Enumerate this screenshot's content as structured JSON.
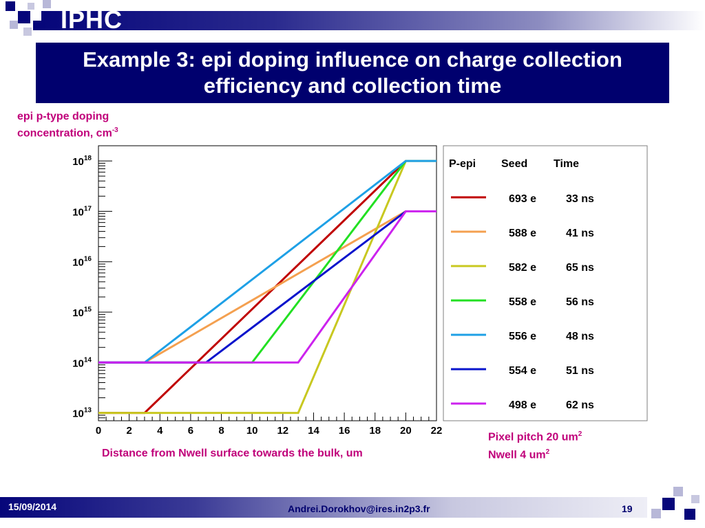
{
  "header": {
    "logo": "IPHC",
    "title": "Example 3: epi doping influence on charge collection efficiency and collection time"
  },
  "annotations": {
    "ylabel_line1": "epi p-type doping",
    "ylabel_line2": "concentration, cm",
    "ylabel_exp": "-3",
    "xlabel": "Distance from Nwell surface towards the bulk, um",
    "pixel_pitch": "Pixel pitch 20 um",
    "pixel_pitch_exp": "2",
    "nwell": "Nwell 4 um",
    "nwell_exp": "2"
  },
  "footer": {
    "date": "15/09/2014",
    "email": "Andrei.Dorokhov@ires.in2p3.fr",
    "page": "19"
  },
  "chart_data": {
    "type": "line",
    "y_scale": "log",
    "xlim": [
      0,
      22
    ],
    "ylim": [
      7000000000000.0,
      2e+18
    ],
    "x_ticks": [
      0,
      2,
      4,
      6,
      8,
      10,
      12,
      14,
      16,
      18,
      20,
      22
    ],
    "y_ticks": [
      {
        "value": 10000000000000.0,
        "base": "10",
        "exp": "13"
      },
      {
        "value": 100000000000000.0,
        "base": "10",
        "exp": "14"
      },
      {
        "value": 1000000000000000.0,
        "base": "10",
        "exp": "15"
      },
      {
        "value": 1e+16,
        "base": "10",
        "exp": "16"
      },
      {
        "value": 1e+17,
        "base": "10",
        "exp": "17"
      },
      {
        "value": 1e+18,
        "base": "10",
        "exp": "18"
      }
    ],
    "legend": {
      "placement": "right",
      "headers": [
        "P-epi",
        "Seed",
        "Time"
      ]
    },
    "series": [
      {
        "seed": "693 e",
        "time": "33 ns",
        "color": "#c00000",
        "points": [
          [
            0,
            10000000000000.0
          ],
          [
            3,
            10000000000000.0
          ],
          [
            20,
            1e+18
          ]
        ]
      },
      {
        "seed": "588 e",
        "time": "41 ns",
        "color": "#f4a050",
        "points": [
          [
            0,
            100000000000000.0
          ],
          [
            3,
            100000000000000.0
          ],
          [
            20,
            1e+17
          ]
        ]
      },
      {
        "seed": "582 e",
        "time": "65 ns",
        "color": "#c8c820",
        "points": [
          [
            0,
            10000000000000.0
          ],
          [
            13,
            10000000000000.0
          ],
          [
            20,
            1e+18
          ],
          [
            22,
            1e+18
          ]
        ]
      },
      {
        "seed": "558 e",
        "time": "56 ns",
        "color": "#22e022",
        "points": [
          [
            0,
            100000000000000.0
          ],
          [
            10,
            100000000000000.0
          ],
          [
            20,
            1e+18
          ]
        ]
      },
      {
        "seed": "556 e",
        "time": "48 ns",
        "color": "#1ea0e6",
        "points": [
          [
            0,
            100000000000000.0
          ],
          [
            3,
            100000000000000.0
          ],
          [
            20,
            1e+18
          ],
          [
            22,
            1e+18
          ]
        ]
      },
      {
        "seed": "554 e",
        "time": "51 ns",
        "color": "#0a14cc",
        "points": [
          [
            0,
            100000000000000.0
          ],
          [
            7,
            100000000000000.0
          ],
          [
            20,
            1e+17
          ]
        ]
      },
      {
        "seed": "498 e",
        "time": "62 ns",
        "color": "#cc22ee",
        "points": [
          [
            0,
            100000000000000.0
          ],
          [
            13,
            100000000000000.0
          ],
          [
            20,
            1e+17
          ],
          [
            22,
            1e+17
          ]
        ]
      }
    ]
  }
}
